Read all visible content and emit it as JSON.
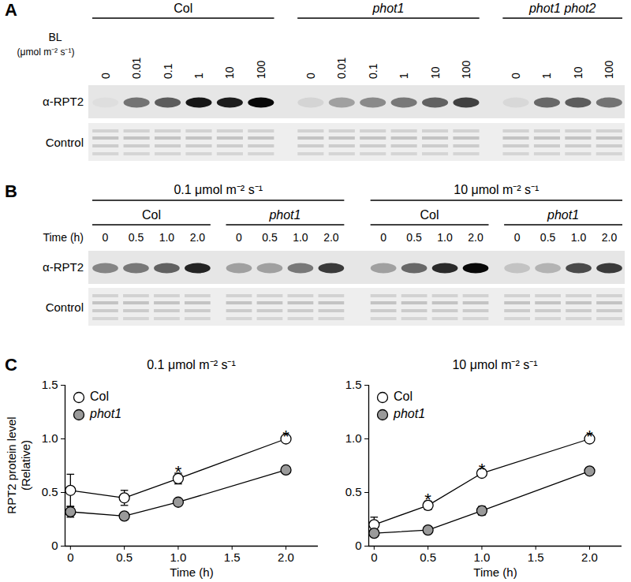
{
  "panel_labels": [
    "A",
    "B",
    "C"
  ],
  "blots": {
    "A": {
      "axis_title": "BL",
      "axis_unit": "(μmol m⁻² s⁻¹)",
      "rows": [
        "α-RPT2",
        "Control"
      ],
      "groups": [
        {
          "name": "Col",
          "lanes": [
            "0",
            "0.01",
            "0.1",
            "1",
            "10",
            "100"
          ],
          "band_intensity": [
            0.03,
            0.5,
            0.6,
            0.9,
            0.88,
            0.97
          ]
        },
        {
          "name": "phot1",
          "lanes": [
            "0",
            "0.01",
            "0.1",
            "1",
            "10",
            "100"
          ],
          "band_intensity": [
            0.08,
            0.3,
            0.4,
            0.48,
            0.58,
            0.72
          ]
        },
        {
          "name": "phot1 phot2",
          "lanes": [
            "0",
            "1",
            "10",
            "100"
          ],
          "band_intensity": [
            0.06,
            0.55,
            0.6,
            0.5
          ]
        }
      ]
    },
    "B": {
      "row_title": "Time (h)",
      "rows": [
        "α-RPT2",
        "Control"
      ],
      "conditions": [
        {
          "name": "0.1 μmol m⁻² s⁻¹",
          "groups": [
            {
              "name": "Col",
              "lanes": [
                "0",
                "0.5",
                "1.0",
                "2.0"
              ],
              "band_intensity": [
                0.42,
                0.48,
                0.58,
                0.85
              ]
            },
            {
              "name": "phot1",
              "lanes": [
                "0",
                "0.5",
                "1.0",
                "2.0"
              ],
              "band_intensity": [
                0.3,
                0.3,
                0.48,
                0.75
              ]
            }
          ]
        },
        {
          "name": "10 μmol m⁻² s⁻¹",
          "groups": [
            {
              "name": "Col",
              "lanes": [
                "0",
                "0.5",
                "1.0",
                "2.0"
              ],
              "band_intensity": [
                0.3,
                0.55,
                0.82,
                0.97
              ]
            },
            {
              "name": "phot1",
              "lanes": [
                "0",
                "0.5",
                "1.0",
                "2.0"
              ],
              "band_intensity": [
                0.15,
                0.22,
                0.68,
                0.75
              ]
            }
          ]
        }
      ]
    }
  },
  "chart_data": [
    {
      "type": "line",
      "title": "0.1 μmol m⁻² s⁻¹",
      "x_label": "Time (h)",
      "y_label": "RPT2 protein level\n(Relative)",
      "x": [
        0,
        0.5,
        1.0,
        2.0
      ],
      "xlim": [
        -0.05,
        2.3
      ],
      "xticks": [
        0,
        0.5,
        {
          "value": 1,
          "label": "1.0"
        },
        1.5,
        {
          "value": 2,
          "label": "2.0"
        }
      ],
      "ylim": [
        0,
        1.5
      ],
      "yticks": [
        0,
        0.5,
        {
          "value": 1,
          "label": "1.0"
        },
        1.5
      ],
      "legend": "top-left",
      "marker": "circle",
      "series": [
        {
          "name": "Col",
          "color": "#ffffff",
          "values": [
            0.52,
            0.45,
            0.63,
            1.0
          ],
          "error": [
            0.15,
            0.07,
            0.05,
            0.01
          ]
        },
        {
          "name": "phot1",
          "color": "#9a9a9a",
          "values": [
            0.32,
            0.28,
            0.41,
            0.71
          ],
          "error": [
            0.05,
            0.03,
            0.03,
            0.03
          ]
        }
      ],
      "annotations": [
        {
          "x": 1.0,
          "text": "*"
        },
        {
          "x": 2.0,
          "text": "*"
        }
      ]
    },
    {
      "type": "line",
      "title": "10 μmol m⁻² s⁻¹",
      "x_label": "Time (h)",
      "x": [
        0,
        0.5,
        1.0,
        2.0
      ],
      "xlim": [
        -0.05,
        2.3
      ],
      "xticks": [
        0,
        0.5,
        {
          "value": 1,
          "label": "1.0"
        },
        1.5,
        {
          "value": 2,
          "label": "2.0"
        }
      ],
      "ylim": [
        0,
        1.5
      ],
      "yticks": [
        0,
        0.5,
        {
          "value": 1,
          "label": "1.0"
        },
        1.5
      ],
      "legend": "top-left",
      "marker": "circle",
      "series": [
        {
          "name": "Col",
          "color": "#ffffff",
          "values": [
            0.2,
            0.38,
            0.68,
            1.0
          ],
          "error": [
            0.07,
            0.04,
            0.02,
            0.01
          ]
        },
        {
          "name": "phot1",
          "color": "#9a9a9a",
          "values": [
            0.12,
            0.15,
            0.33,
            0.7
          ],
          "error": [
            0.02,
            0.02,
            0.04,
            0.03
          ]
        }
      ],
      "annotations": [
        {
          "x": 0.5,
          "text": "*"
        },
        {
          "x": 1.0,
          "text": "*"
        },
        {
          "x": 2.0,
          "text": "*"
        }
      ]
    }
  ]
}
